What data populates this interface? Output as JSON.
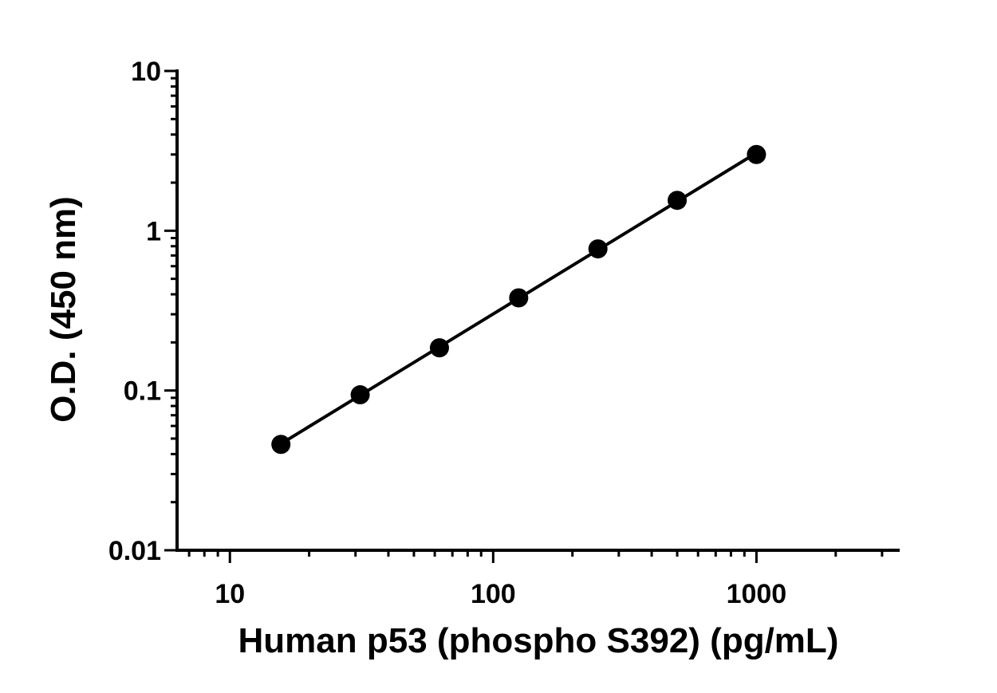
{
  "chart_data": {
    "type": "scatter",
    "title": "",
    "xlabel": "Human p53 (phospho S392) (pg/mL)",
    "ylabel": "O.D. (450 nm)",
    "xscale": "log",
    "yscale": "log",
    "xlim": [
      6.3,
      3500
    ],
    "ylim": [
      0.01,
      10
    ],
    "x_ticks": [
      {
        "value": 10,
        "label": "10"
      },
      {
        "value": 100,
        "label": "100"
      },
      {
        "value": 1000,
        "label": "1000"
      }
    ],
    "y_ticks": [
      {
        "value": 0.01,
        "label": "0.01"
      },
      {
        "value": 0.1,
        "label": "0.1"
      },
      {
        "value": 1,
        "label": "1"
      },
      {
        "value": 10,
        "label": "10"
      }
    ],
    "grid": false,
    "legend": "none",
    "series": [
      {
        "x": [
          15.625,
          31.25,
          62.5,
          125,
          250,
          500,
          1000
        ],
        "y": [
          0.046,
          0.094,
          0.185,
          0.38,
          0.77,
          1.55,
          3.0
        ],
        "marker": "circle",
        "line": "fit",
        "color": "#000000"
      }
    ]
  }
}
